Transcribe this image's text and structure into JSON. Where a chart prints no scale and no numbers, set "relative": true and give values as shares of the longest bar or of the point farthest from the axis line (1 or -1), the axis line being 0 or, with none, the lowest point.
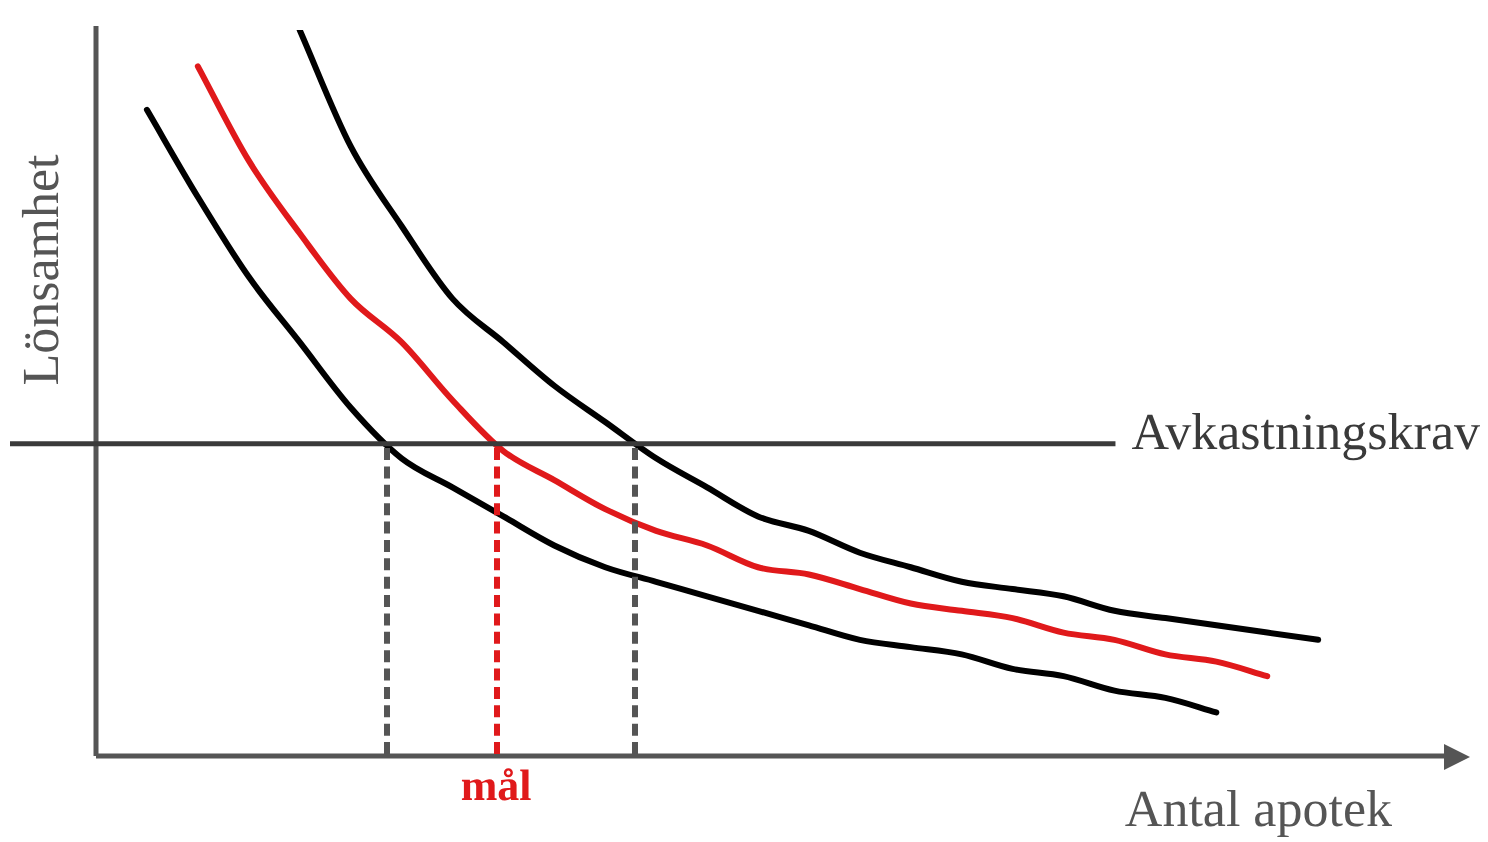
{
  "chart_data": {
    "type": "line",
    "relative": true,
    "xlabel": "Antal apotek",
    "ylabel": "Lönsamhet",
    "categories": [
      null,
      null,
      null,
      null,
      null,
      null,
      null,
      null,
      null,
      null,
      null,
      null,
      null,
      null,
      null,
      null,
      null,
      null,
      null,
      null,
      null,
      null,
      null,
      null,
      null,
      null,
      null
    ],
    "series": [
      {
        "color": "#000000",
        "values": [
          null,
          0.89,
          0.77,
          0.66,
          0.57,
          0.48,
          0.41,
          0.37,
          0.33,
          0.29,
          0.26,
          0.24,
          0.22,
          0.2,
          0.18,
          0.16,
          0.15,
          0.14,
          0.12,
          0.11,
          0.09,
          0.08,
          0.06,
          null,
          null,
          null,
          null
        ]
      },
      {
        "color": "#e0191b",
        "values": [
          null,
          null,
          0.95,
          0.82,
          0.72,
          0.63,
          0.57,
          0.49,
          0.42,
          0.38,
          0.34,
          0.31,
          0.29,
          0.26,
          0.25,
          0.23,
          0.21,
          0.2,
          0.19,
          0.17,
          0.16,
          0.14,
          0.13,
          0.11,
          null,
          null,
          null
        ]
      },
      {
        "color": "#000000",
        "values": [
          null,
          null,
          null,
          null,
          1,
          0.84,
          0.73,
          0.63,
          0.57,
          0.51,
          0.46,
          0.41,
          0.37,
          0.33,
          0.31,
          0.28,
          0.26,
          0.24,
          0.23,
          0.22,
          0.2,
          0.19,
          0.18,
          0.17,
          0.16,
          null,
          null
        ]
      }
    ],
    "ref_lines": [
      {
        "axis": "y",
        "value": 0.43,
        "label": "Avkastningskrav",
        "color": "#3a3a3a",
        "line_style": "solid"
      }
    ],
    "annotations": [
      "mål"
    ],
    "legend": false,
    "grid": false,
    "marker": "none",
    "line_style": "solid"
  }
}
